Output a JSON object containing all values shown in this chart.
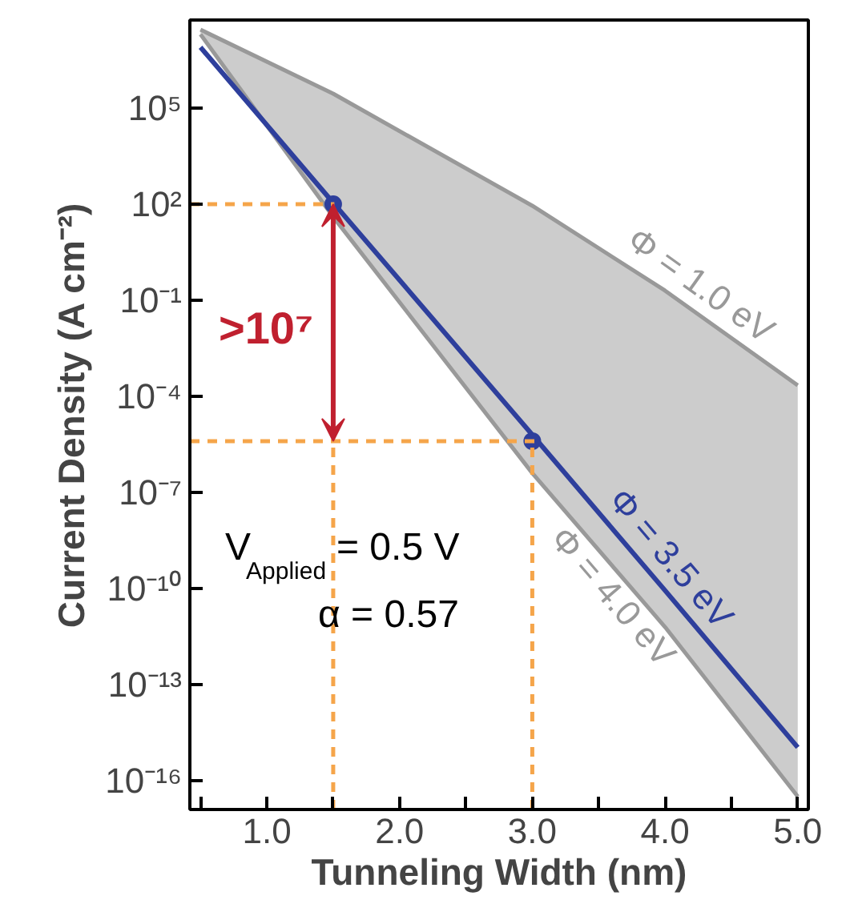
{
  "chart_data": {
    "type": "line",
    "xlabel": "Tunneling Width (nm)",
    "ylabel": "Current Density (A cm⁻²)",
    "x": [
      0.5,
      1.5,
      3.0,
      4.0,
      5.0
    ],
    "series": [
      {
        "name": "Φ = 1.0 eV",
        "color": "#999999",
        "values": [
          28000000.0,
          280000.0,
          89,
          0.2,
          0.00022
        ]
      },
      {
        "name": "Φ = 4.0 eV",
        "color": "#999999",
        "values": [
          20000000.0,
          40,
          4e-07,
          6.3e-12,
          3.2e-17
        ]
      },
      {
        "name": "Φ = 3.5 eV",
        "color": "#2e3f9c",
        "values": [
          7900000.0,
          110,
          6.3e-06,
          8.7e-11,
          1.1e-15
        ],
        "lower": [
          20000000.0,
          40,
          4e-07,
          6.3e-12,
          3.2e-17
        ],
        "upper": [
          28000000.0,
          280000.0,
          89,
          0.2,
          0.00022
        ]
      },
      {
        "type": "scatter",
        "marker": "circle",
        "color": "#2e3f9c",
        "x": [
          1.5,
          3.0
        ],
        "values": [
          100,
          4e-06
        ]
      }
    ],
    "xlim": [
      0.42,
      5.08
    ],
    "ylim": [
      1.26e-17,
      56000000.0
    ],
    "log": "y",
    "line_style": "solid",
    "xticks": [
      {
        "value": 0.5,
        "label": null
      },
      {
        "value": 1.0,
        "label": "1.0"
      },
      {
        "value": 1.5,
        "label": null
      },
      {
        "value": 2.0,
        "label": "2.0"
      },
      {
        "value": 2.5,
        "label": null
      },
      {
        "value": 3.0,
        "label": "3.0"
      },
      {
        "value": 3.5,
        "label": null
      },
      {
        "value": 4.0,
        "label": "4.0"
      },
      {
        "value": 4.5,
        "label": null
      },
      {
        "value": 5.0,
        "label": "5.0"
      }
    ],
    "yticks": [
      {
        "value": 100000.0,
        "label": "10⁵"
      },
      {
        "value": 100.0,
        "label": "10²"
      },
      {
        "value": 0.1,
        "label": "10⁻¹"
      },
      {
        "value": 0.0001,
        "label": "10⁻⁴"
      },
      {
        "value": 1e-07,
        "label": "10⁻⁷"
      },
      {
        "value": 1e-10,
        "label": "10⁻¹⁰"
      },
      {
        "value": 1e-13,
        "label": "10⁻¹³"
      },
      {
        "value": 1e-16,
        "label": "10⁻¹⁶"
      }
    ],
    "ref_lines": [
      {
        "axis": "x",
        "value": 1.5,
        "color": "#f5a54a",
        "line_style": "dashed"
      },
      {
        "axis": "x",
        "value": 3.0,
        "color": "#f5a54a",
        "line_style": "dashed"
      },
      {
        "axis": "y",
        "value": 100,
        "color": "#f5a54a",
        "line_style": "dashed"
      },
      {
        "axis": "y",
        "value": 4e-06,
        "color": "#f5a54a",
        "line_style": "dashed"
      }
    ],
    "annotations": [
      ">10⁷",
      "V$_{Applied}$ = 0.5 V",
      "α = 0.57"
    ]
  }
}
